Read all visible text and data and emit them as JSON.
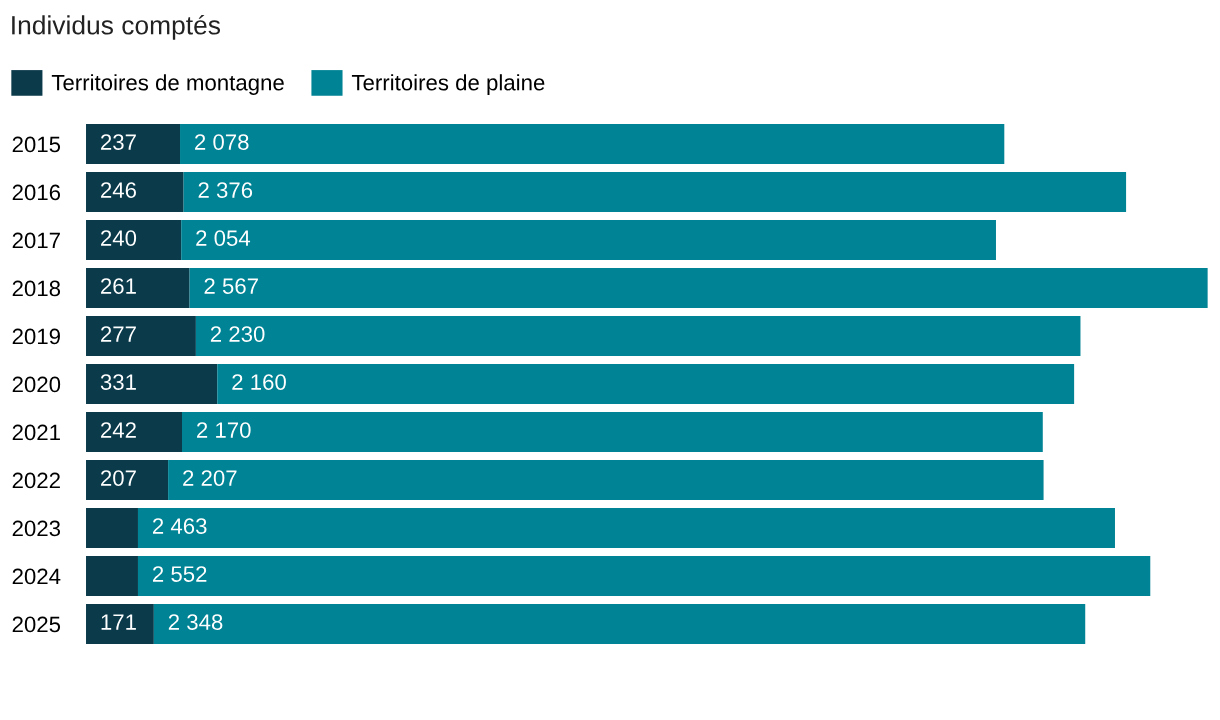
{
  "chart_data": {
    "type": "bar",
    "orientation": "horizontal",
    "stacked": true,
    "title": "Individus comptés",
    "legend": "top left",
    "grid": false,
    "tick_labels": "y",
    "categories": [
      "2015",
      "2016",
      "2017",
      "2018",
      "2019",
      "2020",
      "2021",
      "2022",
      "2023",
      "2024",
      "2025"
    ],
    "series": [
      {
        "name": "Territoires de montagne",
        "color": "#0b3a4b",
        "values": [
          237,
          246,
          240,
          261,
          277,
          331,
          242,
          207,
          131,
          131,
          171
        ],
        "value_labels": [
          "237",
          "246",
          "240",
          "261",
          "277",
          "331",
          "242",
          "207",
          null,
          null,
          "171"
        ]
      },
      {
        "name": "Territoires de plaine",
        "color": "#008394",
        "values": [
          2078,
          2376,
          2054,
          2567,
          2230,
          2160,
          2170,
          2207,
          2463,
          2552,
          2348
        ],
        "value_labels": [
          "2 078",
          "2 376",
          "2 054",
          "2 567",
          "2 230",
          "2 160",
          "2 170",
          "2 207",
          "2 463",
          "2 552",
          "2 348"
        ]
      }
    ]
  }
}
